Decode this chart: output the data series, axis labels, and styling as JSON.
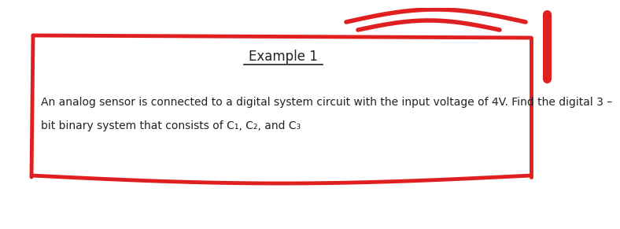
{
  "title": "Example 1",
  "line1": "An analog sensor is connected to a digital system circuit with the input voltage of 4V. Find the digital 3 –",
  "line2": "bit binary system that consists of C₁, C₂, and C₃",
  "bg_color": "#ffffff",
  "box_color": "#ffffff",
  "border_color": "#e02020",
  "text_color": "#222222",
  "title_fontsize": 12,
  "body_fontsize": 10,
  "fig_width": 7.0,
  "fig_height": 2.71
}
